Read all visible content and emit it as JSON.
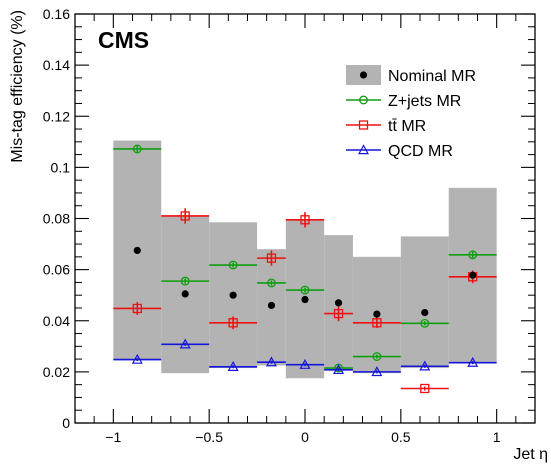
{
  "chart_data": {
    "type": "scatter",
    "experiment_label": "CMS",
    "xlabel": "Jet η",
    "ylabel": "Mis-tag efficiency (%)",
    "xlim": [
      -1.2,
      1.2
    ],
    "ylim": [
      0,
      0.16
    ],
    "xticks": [
      -1,
      -0.5,
      0,
      0.5,
      1
    ],
    "xtick_labels": [
      "−1",
      "−0.5",
      "0",
      "0.5",
      "1"
    ],
    "yticks": [
      0,
      0.02,
      0.04,
      0.06,
      0.08,
      0.1,
      0.12,
      0.14,
      0.16
    ],
    "ytick_labels": [
      "0",
      "0.02",
      "0.04",
      "0.06",
      "0.08",
      "0.1",
      "0.12",
      "0.14",
      "0.16"
    ],
    "grid": false,
    "legend_position": "top-right",
    "bins": [
      {
        "lo": -1.0,
        "hi": -0.75
      },
      {
        "lo": -0.75,
        "hi": -0.5
      },
      {
        "lo": -0.5,
        "hi": -0.25
      },
      {
        "lo": -0.25,
        "hi": -0.1
      },
      {
        "lo": -0.1,
        "hi": 0.1
      },
      {
        "lo": 0.1,
        "hi": 0.25
      },
      {
        "lo": 0.25,
        "hi": 0.5
      },
      {
        "lo": 0.5,
        "hi": 0.75
      },
      {
        "lo": 0.75,
        "hi": 1.0
      }
    ],
    "band": {
      "name": "Nominal MR",
      "color": "#b3b3b3",
      "lower": [
        0.0245,
        0.0195,
        0.0215,
        0.0225,
        0.0175,
        0.0205,
        0.0195,
        0.0215,
        0.0235
      ],
      "upper": [
        0.1105,
        0.081,
        0.0785,
        0.068,
        0.0795,
        0.0735,
        0.065,
        0.073,
        0.092
      ]
    },
    "series": [
      {
        "name": "Nominal MR",
        "color": "#000000",
        "marker": "filled-circle",
        "xerr": false,
        "x": [
          -0.875,
          -0.625,
          -0.375,
          -0.175,
          0.0,
          0.175,
          0.375,
          0.625,
          0.875
        ],
        "values": [
          0.0675,
          0.0505,
          0.05,
          0.046,
          0.0483,
          0.047,
          0.0426,
          0.0432,
          0.0578
        ],
        "errors": [
          0,
          0,
          0,
          0,
          0,
          0,
          0,
          0,
          0
        ]
      },
      {
        "name": "Z+jets MR",
        "color": "#109e10",
        "marker": "open-circle",
        "xerr": true,
        "x": [
          -0.875,
          -0.625,
          -0.375,
          -0.175,
          0.0,
          0.175,
          0.375,
          0.625,
          0.875
        ],
        "values": [
          0.1072,
          0.0555,
          0.0618,
          0.0548,
          0.052,
          0.0215,
          0.026,
          0.039,
          0.0658
        ],
        "errors": [
          0.0015,
          0.001,
          0.001,
          0.001,
          0.001,
          0.0008,
          0.0008,
          0.0008,
          0.0012
        ]
      },
      {
        "name": "tt̄ MR",
        "color": "#ee1111",
        "marker": "open-square",
        "xerr": true,
        "x": [
          -0.875,
          -0.625,
          -0.375,
          -0.175,
          0.0,
          0.175,
          0.375,
          0.625,
          0.875
        ],
        "values": [
          0.0448,
          0.081,
          0.0392,
          0.0645,
          0.0795,
          0.0428,
          0.0392,
          0.0135,
          0.0572
        ],
        "errors": [
          0.0025,
          0.003,
          0.0025,
          0.003,
          0.003,
          0.003,
          0.002,
          0.0008,
          0.0025
        ]
      },
      {
        "name": "QCD MR",
        "color": "#1515dd",
        "marker": "open-triangle",
        "xerr": true,
        "x": [
          -0.875,
          -0.625,
          -0.375,
          -0.175,
          0.0,
          0.175,
          0.375,
          0.625,
          0.875
        ],
        "values": [
          0.0248,
          0.0308,
          0.022,
          0.0238,
          0.0228,
          0.0208,
          0.02,
          0.0222,
          0.0236
        ],
        "errors": [
          0.0006,
          0.0006,
          0.0006,
          0.0006,
          0.0006,
          0.0006,
          0.0006,
          0.0006,
          0.0006
        ]
      }
    ]
  }
}
